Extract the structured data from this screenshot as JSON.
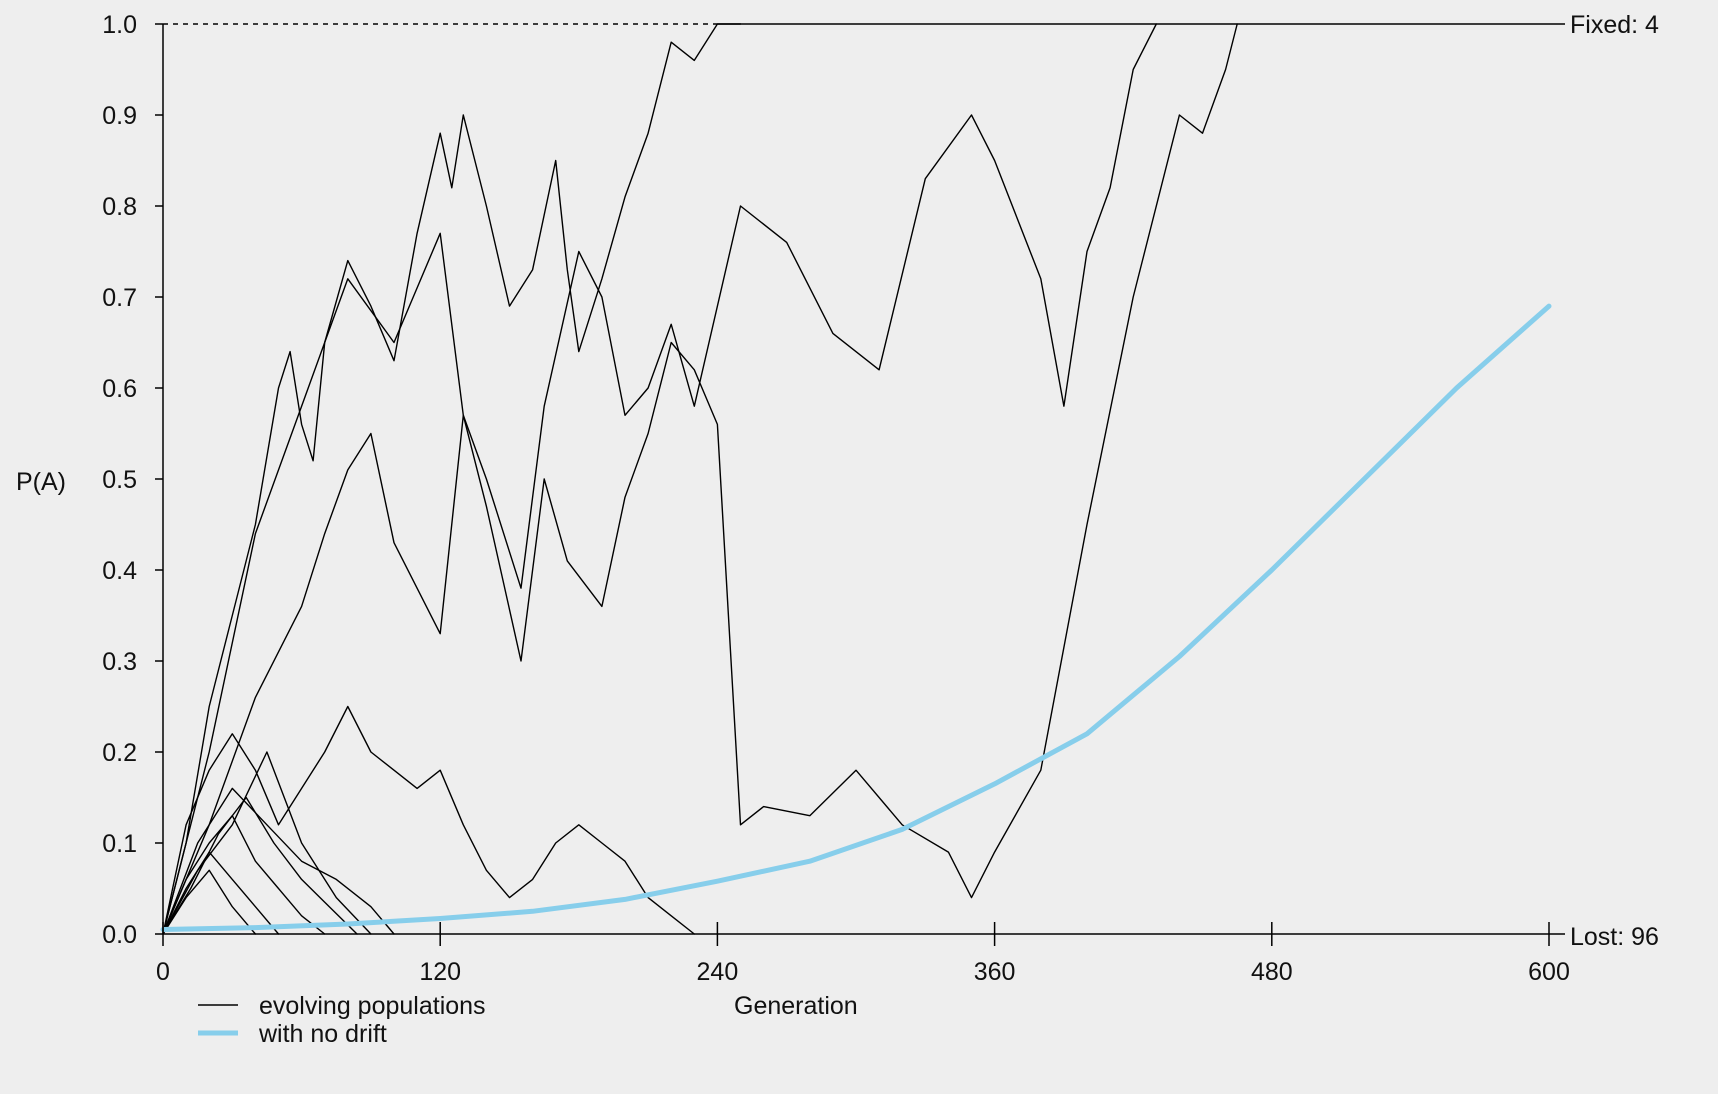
{
  "chart_data": {
    "type": "line",
    "title": "",
    "xlabel": "Generation",
    "ylabel": "P(A)",
    "xlim": [
      0,
      600
    ],
    "ylim": [
      0,
      1
    ],
    "x_ticks": [
      0,
      120,
      240,
      360,
      480,
      600
    ],
    "y_ticks": [
      "0.0",
      "0.1",
      "0.2",
      "0.3",
      "0.4",
      "0.5",
      "0.6",
      "0.7",
      "0.8",
      "0.9",
      "1.0"
    ],
    "grid": false,
    "legend": {
      "placement": "bottom-left",
      "entries": [
        {
          "label": "evolving populations",
          "color": "#000000"
        },
        {
          "label": "with no drift",
          "color": "#87ceeb"
        }
      ]
    },
    "annotations": {
      "fixed_label": "Fixed: 4",
      "lost_label": "Lost: 96"
    },
    "colors": {
      "background": "#eeeeee",
      "drift_lines": "#000000",
      "no_drift_line": "#87ceeb"
    },
    "series": [
      {
        "name": "with no drift",
        "color": "#87ceeb",
        "x": [
          0,
          40,
          80,
          120,
          160,
          200,
          240,
          280,
          320,
          360,
          400,
          440,
          480,
          520,
          560,
          600
        ],
        "y": [
          0.005,
          0.007,
          0.011,
          0.017,
          0.025,
          0.038,
          0.058,
          0.08,
          0.115,
          0.165,
          0.22,
          0.305,
          0.4,
          0.5,
          0.6,
          0.69
        ]
      },
      {
        "name": "evolving populations",
        "color": "#000000",
        "x": [
          0,
          10,
          20,
          30,
          40,
          50,
          55,
          60,
          65,
          70,
          80,
          90,
          100,
          110,
          120,
          125,
          130,
          140,
          150,
          160,
          170,
          175,
          180,
          190,
          200,
          210,
          220,
          230,
          240,
          250
        ],
        "y": [
          0.0,
          0.1,
          0.25,
          0.35,
          0.45,
          0.6,
          0.64,
          0.56,
          0.52,
          0.65,
          0.74,
          0.69,
          0.63,
          0.77,
          0.88,
          0.82,
          0.9,
          0.8,
          0.69,
          0.73,
          0.85,
          0.73,
          0.64,
          0.72,
          0.81,
          0.88,
          0.98,
          0.96,
          1.0,
          1.0
        ]
      },
      {
        "name": "evolving populations",
        "color": "#000000",
        "x": [
          0,
          20,
          40,
          60,
          80,
          100,
          120,
          130,
          140,
          155,
          165,
          180,
          190,
          200,
          210,
          220,
          230,
          250,
          270,
          290,
          310,
          330,
          350,
          360,
          380,
          390,
          400,
          410,
          420,
          430
        ],
        "y": [
          0.0,
          0.2,
          0.44,
          0.58,
          0.72,
          0.65,
          0.77,
          0.57,
          0.5,
          0.38,
          0.58,
          0.75,
          0.7,
          0.57,
          0.6,
          0.67,
          0.58,
          0.8,
          0.76,
          0.66,
          0.62,
          0.83,
          0.9,
          0.85,
          0.72,
          0.58,
          0.75,
          0.82,
          0.95,
          1.0
        ]
      },
      {
        "name": "evolving populations",
        "color": "#000000",
        "x": [
          0,
          20,
          40,
          60,
          70,
          80,
          90,
          100,
          110,
          120,
          130,
          140,
          155,
          165,
          175,
          190,
          200,
          210,
          220,
          230,
          240,
          250,
          260,
          280,
          300,
          320,
          340,
          350,
          360,
          380,
          400,
          420,
          440,
          450,
          460,
          465
        ],
        "y": [
          0.0,
          0.12,
          0.26,
          0.36,
          0.44,
          0.51,
          0.55,
          0.43,
          0.38,
          0.33,
          0.57,
          0.47,
          0.3,
          0.5,
          0.41,
          0.36,
          0.48,
          0.55,
          0.65,
          0.62,
          0.56,
          0.12,
          0.14,
          0.13,
          0.18,
          0.12,
          0.09,
          0.04,
          0.09,
          0.18,
          0.45,
          0.7,
          0.9,
          0.88,
          0.95,
          1.0
        ]
      },
      {
        "name": "evolving populations",
        "color": "#000000",
        "x": [
          0,
          10,
          20,
          30,
          40,
          50,
          60,
          70,
          80,
          90,
          100,
          110,
          120,
          130,
          140,
          150,
          160,
          170,
          180,
          190,
          200,
          210,
          220,
          230
        ],
        "y": [
          0.0,
          0.12,
          0.18,
          0.22,
          0.18,
          0.12,
          0.16,
          0.2,
          0.25,
          0.2,
          0.18,
          0.16,
          0.18,
          0.12,
          0.07,
          0.04,
          0.06,
          0.1,
          0.12,
          0.1,
          0.08,
          0.04,
          0.02,
          0.0
        ]
      },
      {
        "name": "evolving populations",
        "color": "#000000",
        "x": [
          0,
          15,
          30,
          45,
          60,
          75,
          90,
          100
        ],
        "y": [
          0.0,
          0.1,
          0.16,
          0.12,
          0.08,
          0.06,
          0.03,
          0.0
        ]
      },
      {
        "name": "evolving populations",
        "color": "#000000",
        "x": [
          0,
          10,
          20,
          30,
          40,
          50,
          60,
          70
        ],
        "y": [
          0.0,
          0.06,
          0.1,
          0.13,
          0.08,
          0.05,
          0.02,
          0.0
        ]
      },
      {
        "name": "evolving populations",
        "color": "#000000",
        "x": [
          0,
          10,
          20,
          30,
          40,
          50
        ],
        "y": [
          0.0,
          0.05,
          0.09,
          0.06,
          0.03,
          0.0
        ]
      },
      {
        "name": "evolving populations",
        "color": "#000000",
        "x": [
          0,
          15,
          30,
          45,
          60,
          75,
          90
        ],
        "y": [
          0.0,
          0.07,
          0.12,
          0.2,
          0.1,
          0.04,
          0.0
        ]
      },
      {
        "name": "evolving populations",
        "color": "#000000",
        "x": [
          0,
          10,
          20,
          30,
          40
        ],
        "y": [
          0.0,
          0.04,
          0.07,
          0.03,
          0.0
        ]
      },
      {
        "name": "evolving populations",
        "color": "#000000",
        "x": [
          0,
          12,
          24,
          36,
          48,
          60,
          72,
          84
        ],
        "y": [
          0.0,
          0.05,
          0.11,
          0.15,
          0.1,
          0.06,
          0.03,
          0.0
        ]
      }
    ]
  }
}
